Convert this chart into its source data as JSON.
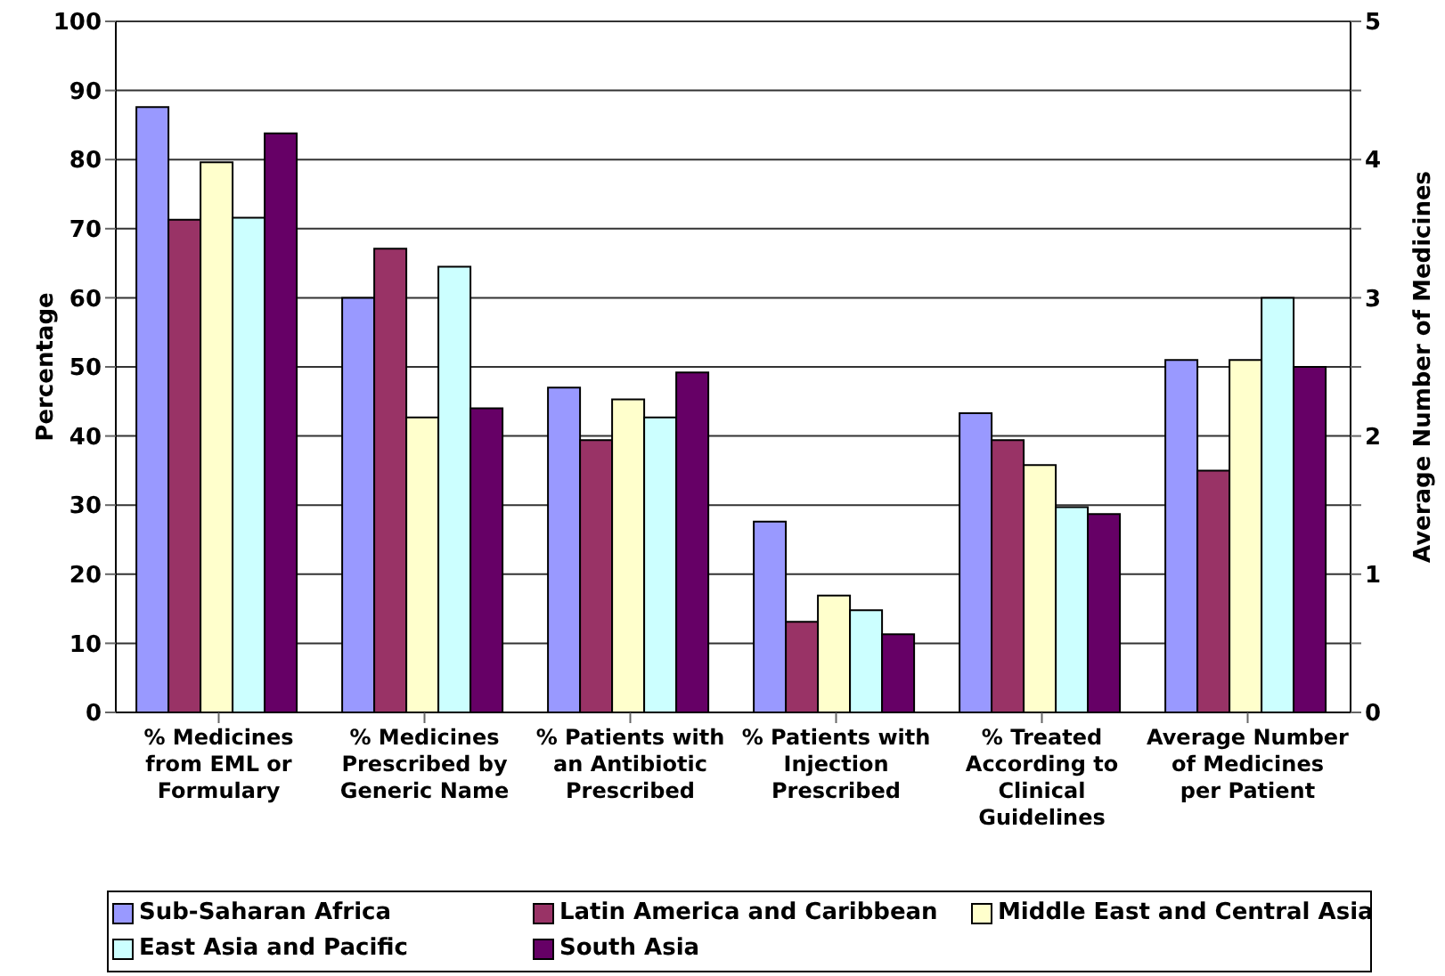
{
  "chart_data": {
    "type": "bar",
    "categories": [
      "% Medicines from EML or Formulary",
      "% Medicines Prescribed by Generic Name",
      "% Patients with an Antibiotic Prescribed",
      "% Patients with Injection Prescribed",
      "% Treated According to Clinical Guidelines",
      "Average Number of Medicines per Patient"
    ],
    "series": [
      {
        "name": "Sub-Saharan Africa",
        "color": "#9999ff",
        "values": [
          87.6,
          60,
          47,
          27.6,
          43.3,
          null
        ]
      },
      {
        "name": "Latin America and Caribbean",
        "color": "#993366",
        "values": [
          71.3,
          67.1,
          39.4,
          13.1,
          39.4,
          null
        ]
      },
      {
        "name": "Middle East and Central Asia",
        "color": "#ffffcc",
        "values": [
          79.6,
          42.7,
          45.3,
          16.9,
          35.8,
          null
        ]
      },
      {
        "name": "East Asia and Pacific",
        "color": "#ccffff",
        "values": [
          71.6,
          64.5,
          42.7,
          14.8,
          29.7,
          null
        ]
      },
      {
        "name": "South Asia",
        "color": "#660066",
        "values": [
          83.8,
          44,
          49.2,
          11.3,
          28.7,
          null
        ]
      },
      {
        "color": "#9999ff",
        "axis": "y2",
        "values": [
          null,
          null,
          null,
          null,
          null,
          2.55
        ]
      },
      {
        "color": "#993366",
        "axis": "y2",
        "values": [
          null,
          null,
          null,
          null,
          null,
          1.75
        ]
      },
      {
        "color": "#ffffcc",
        "axis": "y2",
        "values": [
          null,
          null,
          null,
          null,
          null,
          2.55
        ]
      },
      {
        "color": "#ccffff",
        "axis": "y2",
        "values": [
          null,
          null,
          null,
          null,
          null,
          3.0
        ]
      },
      {
        "color": "#660066",
        "axis": "y2",
        "values": [
          null,
          null,
          null,
          null,
          null,
          2.5
        ]
      }
    ],
    "ylabel": "Percentage",
    "y2label": "Average Number of Medicines",
    "ylim": [
      0,
      100
    ],
    "yticks": [
      0,
      10,
      20,
      30,
      40,
      50,
      60,
      70,
      80,
      90,
      100
    ],
    "y2lim": [
      0,
      5
    ],
    "y2ticks": [
      0,
      {
        "value": 0.5,
        "label": null
      },
      1,
      {
        "value": 1.5,
        "label": null
      },
      2,
      {
        "value": 2.5,
        "label": null
      },
      3,
      {
        "value": 3.5,
        "label": null
      },
      4,
      {
        "value": 4.5,
        "label": null
      },
      5
    ],
    "grid": "y",
    "legend": "bottom"
  }
}
